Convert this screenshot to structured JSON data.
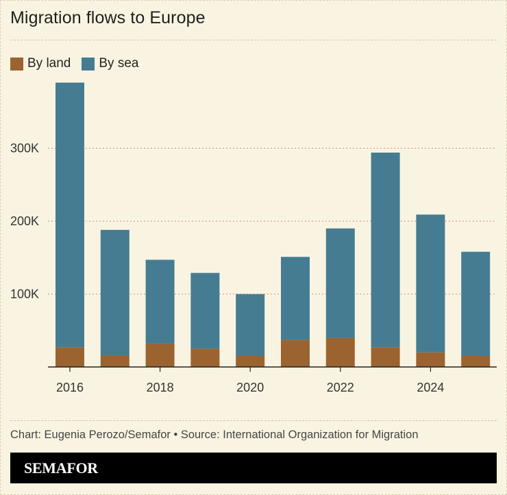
{
  "title": "Migration flows to Europe",
  "legend": [
    {
      "label": "By land",
      "color": "#9b6330"
    },
    {
      "label": "By sea",
      "color": "#467c92"
    }
  ],
  "caption": "Chart: Eugenia Perozo/Semafor • Source: International Organization for Migration",
  "brand": "SEMAFOR",
  "chart_data": {
    "type": "bar",
    "stacked": true,
    "categories": [
      "2016",
      "2017",
      "2018",
      "2019",
      "2020",
      "2021",
      "2022",
      "2023",
      "2024",
      "2025"
    ],
    "x_tick_labels": [
      "2016",
      "2018",
      "2020",
      "2022",
      "2024"
    ],
    "series": [
      {
        "name": "By land",
        "color": "#9b6330",
        "values": [
          27000,
          16000,
          32000,
          25000,
          15000,
          37000,
          40000,
          27000,
          20000,
          15000
        ]
      },
      {
        "name": "By sea",
        "color": "#467c92",
        "values": [
          363000,
          172000,
          115000,
          104000,
          85000,
          114000,
          150000,
          267000,
          189000,
          143000
        ]
      }
    ],
    "y_ticks": [
      100000,
      200000,
      300000
    ],
    "y_tick_labels": [
      "100K",
      "200K",
      "300K"
    ],
    "ylim": [
      0,
      400000
    ],
    "grid": true,
    "legend_position": "top-left"
  }
}
